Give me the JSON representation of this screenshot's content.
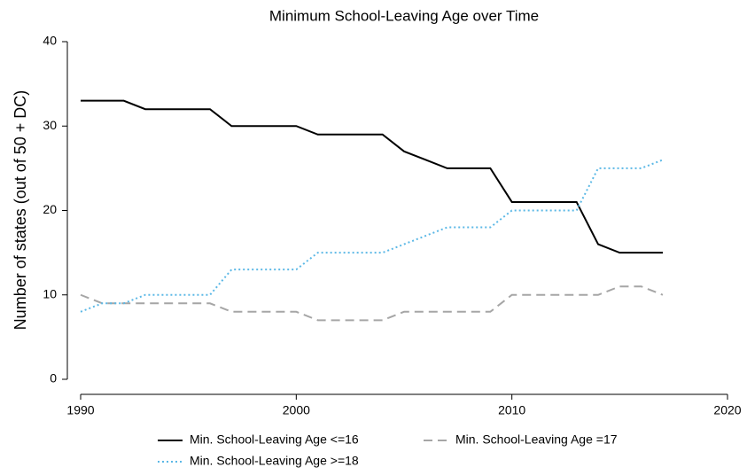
{
  "chart_data": {
    "type": "line",
    "title": "Minimum School-Leaving Age over Time",
    "y_label": "Number of states (out of 50 + DC)",
    "x": [
      1990,
      1991,
      1992,
      1993,
      1994,
      1995,
      1996,
      1997,
      1998,
      1999,
      2000,
      2001,
      2002,
      2003,
      2004,
      2005,
      2006,
      2007,
      2008,
      2009,
      2010,
      2011,
      2012,
      2013,
      2014,
      2015,
      2016,
      2017
    ],
    "series": [
      {
        "name": "Min. School-Leaving Age <=16",
        "color": "#000000",
        "style": "solid",
        "values": [
          33,
          33,
          33,
          32,
          32,
          32,
          32,
          30,
          30,
          30,
          30,
          29,
          29,
          29,
          29,
          27,
          26,
          25,
          25,
          25,
          21,
          21,
          21,
          21,
          16,
          15,
          15,
          15
        ]
      },
      {
        "name": "Min. School-Leaving Age =17",
        "color": "#a6a6a6",
        "style": "dashed",
        "values": [
          10,
          9,
          9,
          9,
          9,
          9,
          9,
          8,
          8,
          8,
          8,
          7,
          7,
          7,
          7,
          8,
          8,
          8,
          8,
          8,
          10,
          10,
          10,
          10,
          10,
          11,
          11,
          10
        ]
      },
      {
        "name": "Min. School-Leaving Age >=18",
        "color": "#5bb8e6",
        "style": "dotted",
        "values": [
          8,
          9,
          9,
          10,
          10,
          10,
          10,
          13,
          13,
          13,
          13,
          15,
          15,
          15,
          15,
          16,
          17,
          18,
          18,
          18,
          20,
          20,
          20,
          20,
          25,
          25,
          25,
          26
        ]
      }
    ],
    "xlim": [
      1990,
      2020
    ],
    "xticks": [
      1990,
      2000,
      2010,
      2020
    ],
    "ylim": [
      0,
      40
    ],
    "yticks": [
      0,
      10,
      20,
      30,
      40
    ],
    "grid": false,
    "legend": "bottom"
  }
}
